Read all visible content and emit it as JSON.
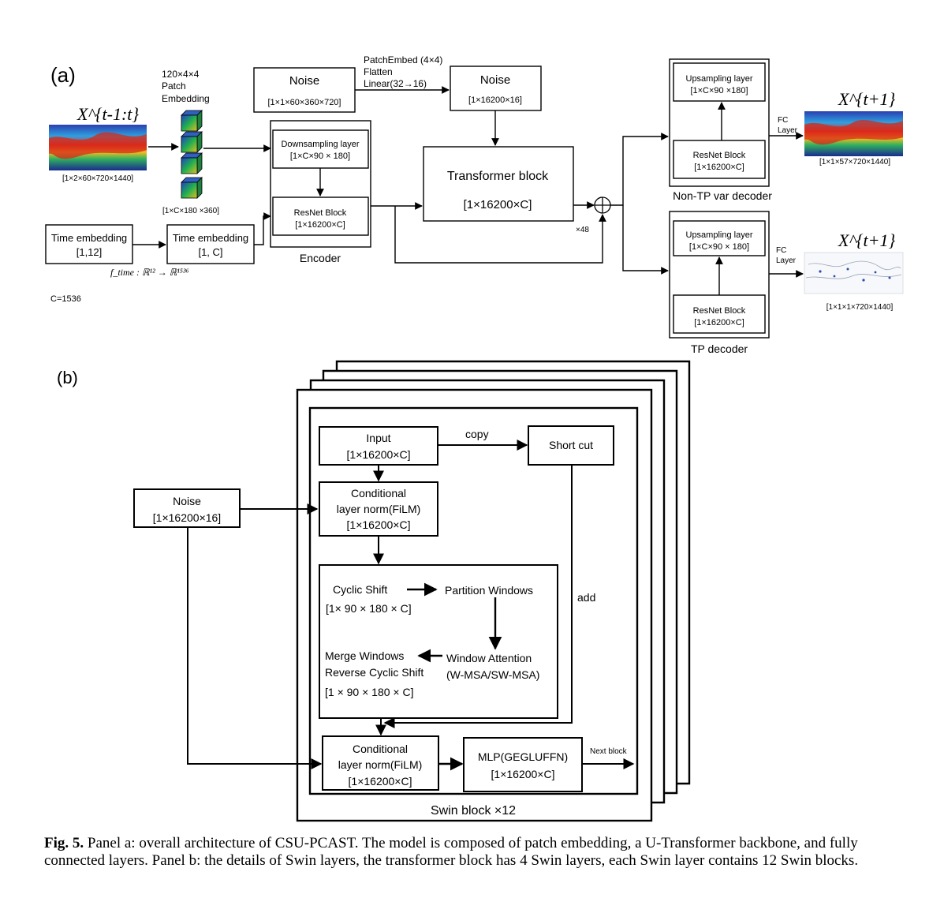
{
  "panel_a": {
    "label": "(a)",
    "input_var": "X^{t-1:t}",
    "input_dims": "[1×2×60×720×1440]",
    "patch_embed_line1": "120×4×4",
    "patch_embed_line2": "Patch",
    "patch_embed_line3": "Embedding",
    "patch_dims": "[1×C×180 ×360]",
    "time_embed1_title": "Time embedding",
    "time_embed1_dims": "[1,12]",
    "time_embed2_title": "Time embedding",
    "time_embed2_dims": "[1, C]",
    "f_time": "f_time : ℝ¹² → ℝ¹⁵³⁶",
    "c_value": "C=1536",
    "noise1_title": "Noise",
    "noise1_dims": "[1×1×60×360×720]",
    "noise_proc_line1": "PatchEmbed (4×4)",
    "noise_proc_line2": "Flatten",
    "noise_proc_line3": "Linear(32→16)",
    "noise2_title": "Noise",
    "noise2_dims": "[1×16200×16]",
    "encoder_down_title": "Downsampling layer",
    "encoder_down_dims": "[1×C×90 × 180]",
    "encoder_res_title": "ResNet Block",
    "encoder_res_dims": "[1×16200×C]",
    "encoder_label": "Encoder",
    "transformer_title": "Transformer block",
    "transformer_dims": "[1×16200×C]",
    "repeat": "×48",
    "dec1_up_title": "Upsampling layer",
    "dec1_up_dims": "[1×C×90 ×180]",
    "dec1_res_title": "ResNet Block",
    "dec1_res_dims": "[1×16200×C]",
    "dec1_label": "Non-TP var decoder",
    "fc1_line1": "FC",
    "fc1_line2": "Layer",
    "out1_var": "X^{t+1}",
    "out1_dims": "[1×1×57×720×1440]",
    "dec2_up_title": "Upsampling layer",
    "dec2_up_dims": "[1×C×90 × 180]",
    "dec2_res_title": "ResNet Block",
    "dec2_res_dims": "[1×16200×C]",
    "dec2_label": "TP decoder",
    "fc2_line1": "FC",
    "fc2_line2": "Layer",
    "out2_var": "X^{t+1}",
    "out2_dims": "[1×1×1×720×1440]"
  },
  "panel_b": {
    "label": "(b)",
    "noise_title": "Noise",
    "noise_dims": "[1×16200×16]",
    "input_title": "Input",
    "input_dims": "[1×16200×C]",
    "copy_label": "copy",
    "shortcut_label": "Short cut",
    "cln1_line1": "Conditional",
    "cln1_line2": "layer norm(FiLM)",
    "cln1_line3": "[1×16200×C]",
    "cyclic_shift": "Cyclic Shift",
    "partition_windows": "Partition Windows",
    "cyclic_dims": "[1× 90 × 180 × C]",
    "window_attention": "Window Attention",
    "wmsa": "(W-MSA/SW-MSA)",
    "merge_windows": "Merge Windows",
    "reverse_cyclic": "Reverse Cyclic Shift",
    "merge_dims": "[1 × 90 × 180 × C]",
    "add_label": "add",
    "cln2_line1": "Conditional",
    "cln2_line2": "layer norm(FiLM)",
    "cln2_line3": "[1×16200×C]",
    "mlp_title": "MLP(GEGLUFFN)",
    "mlp_dims": "[1×16200×C]",
    "next_block": "Next block",
    "swin_label": "Swin block ×12"
  },
  "caption": {
    "fig_label": "Fig. 5.",
    "text": " Panel a: overall architecture of CSU-PCAST. The model is composed of patch embedding, a U-Transformer backbone, and fully connected layers. Panel b: the details of Swin layers, the transformer block has 4 Swin layers, each Swin layer contains 12 Swin blocks."
  }
}
